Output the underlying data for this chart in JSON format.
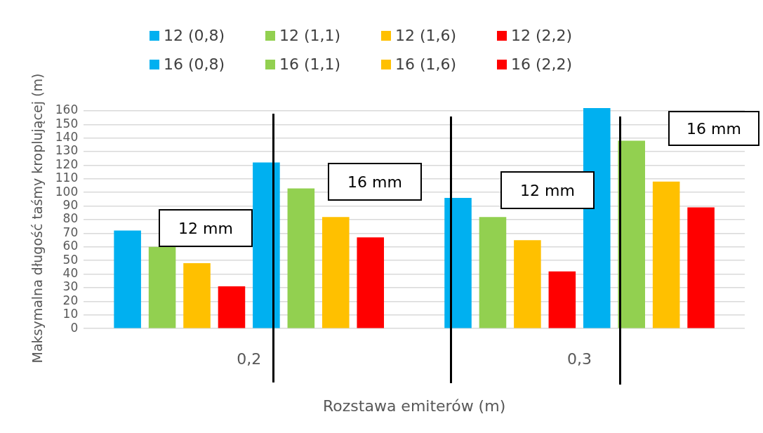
{
  "chart_data": {
    "type": "bar",
    "categories": [
      "0,2",
      "0,3"
    ],
    "xlabel": "Rozstawa emiterów (m)",
    "ylabel": "Maksymalna długość taśmy kroplującej (m)",
    "series": [
      {
        "name": "12 (0,8)",
        "color": "#00b0f0",
        "values": [
          72,
          96
        ]
      },
      {
        "name": "12 (1,1)",
        "color": "#92d050",
        "values": [
          60,
          82
        ]
      },
      {
        "name": "12 (1,6)",
        "color": "#ffc000",
        "values": [
          48,
          65
        ]
      },
      {
        "name": "12 (2,2)",
        "color": "#ff0000",
        "values": [
          31,
          42
        ]
      },
      {
        "name": "16 (0,8)",
        "color": "#00b0f0",
        "values": [
          122,
          162
        ]
      },
      {
        "name": "16 (1,1)",
        "color": "#92d050",
        "values": [
          103,
          138
        ]
      },
      {
        "name": "16 (1,6)",
        "color": "#ffc000",
        "values": [
          82,
          108
        ]
      },
      {
        "name": "16 (2,2)",
        "color": "#ff0000",
        "values": [
          67,
          89
        ]
      }
    ],
    "ylim": [
      0,
      162
    ],
    "yticks": [
      0,
      10,
      20,
      30,
      40,
      50,
      60,
      70,
      80,
      90,
      100,
      110,
      120,
      130,
      140,
      150,
      160
    ],
    "grid": "y",
    "legend": "top",
    "annotations": [
      "12 mm",
      "16 mm",
      "12 mm",
      "16 mm"
    ]
  }
}
